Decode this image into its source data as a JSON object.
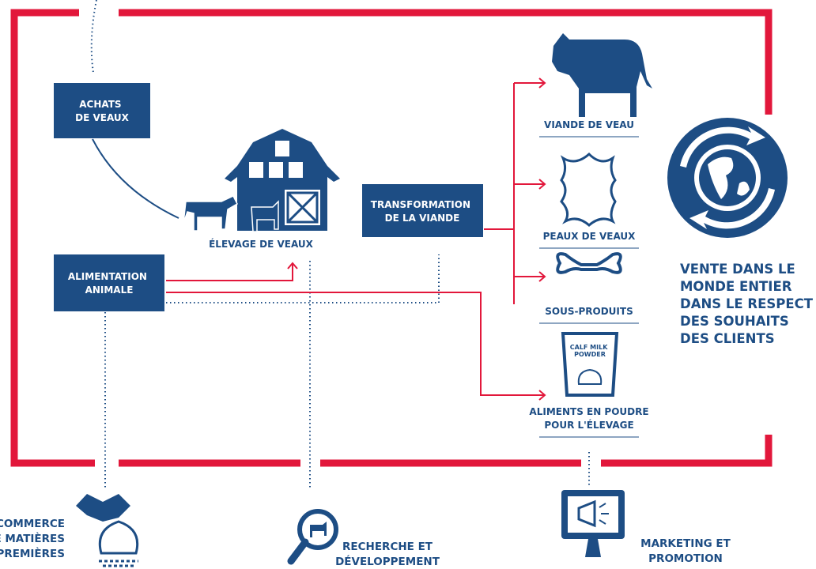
{
  "nodes": {
    "achats": {
      "lines": [
        "ACHATS",
        "DE VEAUX"
      ]
    },
    "elevage": {
      "lines": [
        "ÉLEVAGE DE VEAUX"
      ]
    },
    "transformation": {
      "lines": [
        "TRANSFORMATION",
        "DE LA VIANDE"
      ]
    },
    "alimentation": {
      "lines": [
        "ALIMENTATION",
        "ANIMALE"
      ]
    }
  },
  "products": [
    {
      "lines": [
        "VIANDE DE VEAU"
      ]
    },
    {
      "lines": [
        "PEAUX DE VEAUX"
      ]
    },
    {
      "lines": [
        "SOUS-PRODUITS"
      ]
    },
    {
      "lines": [
        "ALIMENTS EN POUDRE",
        "POUR L'ÉLEVAGE"
      ]
    }
  ],
  "bag_label": [
    "CALF MILK",
    "POWDER"
  ],
  "sales": [
    "VENTE DANS LE",
    "MONDE ENTIER",
    "DANS LE RESPECT",
    "DES SOUHAITS",
    "DES CLIENTS"
  ],
  "services": [
    {
      "lines": [
        "COMMERCE",
        "DE MATIÈRES",
        "PREMIÈRES"
      ]
    },
    {
      "lines": [
        "RECHERCHE ET",
        "DÉVELOPPEMENT"
      ]
    },
    {
      "lines": [
        "MARKETING ET",
        "PROMOTION"
      ]
    }
  ]
}
